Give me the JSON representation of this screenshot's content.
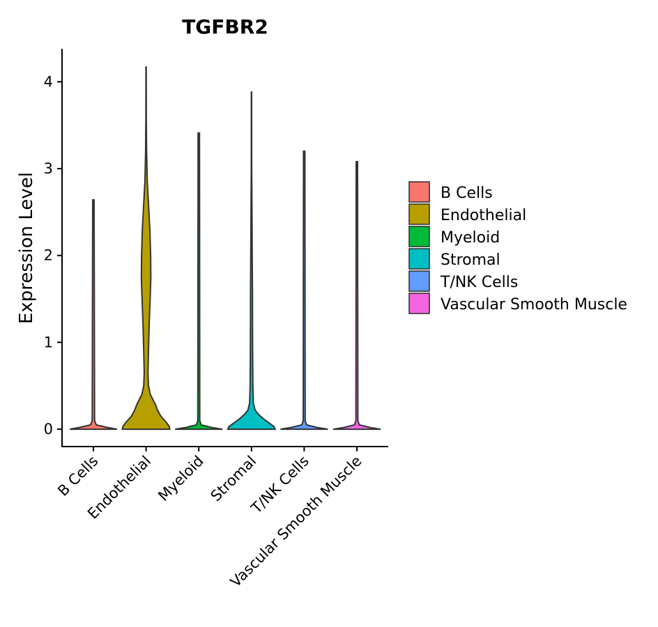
{
  "chart_data": {
    "type": "violin",
    "title": "TGFBR2",
    "xlabel": "",
    "ylabel": "Expression Level",
    "ylim": [
      -0.2,
      4.38
    ],
    "yticks": [
      0,
      1,
      2,
      3,
      4
    ],
    "grid": false,
    "legend_position": "right",
    "categories": [
      "B Cells",
      "Endothelial",
      "Myeloid",
      "Stromal",
      "T/NK Cells",
      "Vascular Smooth Muscle"
    ],
    "colors": [
      "#F8766D",
      "#B79F00",
      "#00BA38",
      "#00BFC4",
      "#619CFF",
      "#F564E3"
    ],
    "series": [
      {
        "name": "B Cells",
        "max": 2.64,
        "profile": [
          [
            0,
            1.0
          ],
          [
            0.02,
            0.6
          ],
          [
            0.05,
            0.12
          ],
          [
            0.1,
            0.05
          ],
          [
            2.64,
            0.03
          ]
        ]
      },
      {
        "name": "Endothelial",
        "max": 4.17,
        "profile": [
          [
            0,
            1.0
          ],
          [
            0.03,
            0.98
          ],
          [
            0.08,
            0.85
          ],
          [
            0.15,
            0.62
          ],
          [
            0.22,
            0.48
          ],
          [
            0.28,
            0.4
          ],
          [
            0.4,
            0.18
          ],
          [
            0.5,
            0.1
          ],
          [
            0.65,
            0.08
          ],
          [
            0.9,
            0.1
          ],
          [
            1.2,
            0.13
          ],
          [
            1.5,
            0.17
          ],
          [
            1.75,
            0.2
          ],
          [
            2.0,
            0.19
          ],
          [
            2.3,
            0.16
          ],
          [
            2.6,
            0.1
          ],
          [
            2.85,
            0.05
          ],
          [
            3.2,
            0.02
          ],
          [
            3.6,
            0.01
          ],
          [
            4.17,
            0.005
          ]
        ]
      },
      {
        "name": "Myeloid",
        "max": 3.41,
        "profile": [
          [
            0,
            1.0
          ],
          [
            0.02,
            0.55
          ],
          [
            0.05,
            0.1
          ],
          [
            0.1,
            0.04
          ],
          [
            3.41,
            0.03
          ]
        ]
      },
      {
        "name": "Stromal",
        "max": 3.88,
        "profile": [
          [
            0,
            1.0
          ],
          [
            0.03,
            0.95
          ],
          [
            0.07,
            0.75
          ],
          [
            0.12,
            0.5
          ],
          [
            0.17,
            0.3
          ],
          [
            0.22,
            0.15
          ],
          [
            0.3,
            0.08
          ],
          [
            0.5,
            0.06
          ],
          [
            0.8,
            0.05
          ],
          [
            1.2,
            0.045
          ],
          [
            1.6,
            0.04
          ],
          [
            2.0,
            0.03
          ],
          [
            2.5,
            0.02
          ],
          [
            3.0,
            0.01
          ],
          [
            3.88,
            0.005
          ]
        ]
      },
      {
        "name": "T/NK Cells",
        "max": 3.2,
        "profile": [
          [
            0,
            1.0
          ],
          [
            0.02,
            0.55
          ],
          [
            0.05,
            0.1
          ],
          [
            0.1,
            0.04
          ],
          [
            3.2,
            0.03
          ]
        ]
      },
      {
        "name": "Vascular Smooth Muscle",
        "max": 3.08,
        "profile": [
          [
            0,
            1.0
          ],
          [
            0.02,
            0.55
          ],
          [
            0.05,
            0.1
          ],
          [
            0.1,
            0.04
          ],
          [
            3.08,
            0.03
          ]
        ]
      }
    ]
  }
}
